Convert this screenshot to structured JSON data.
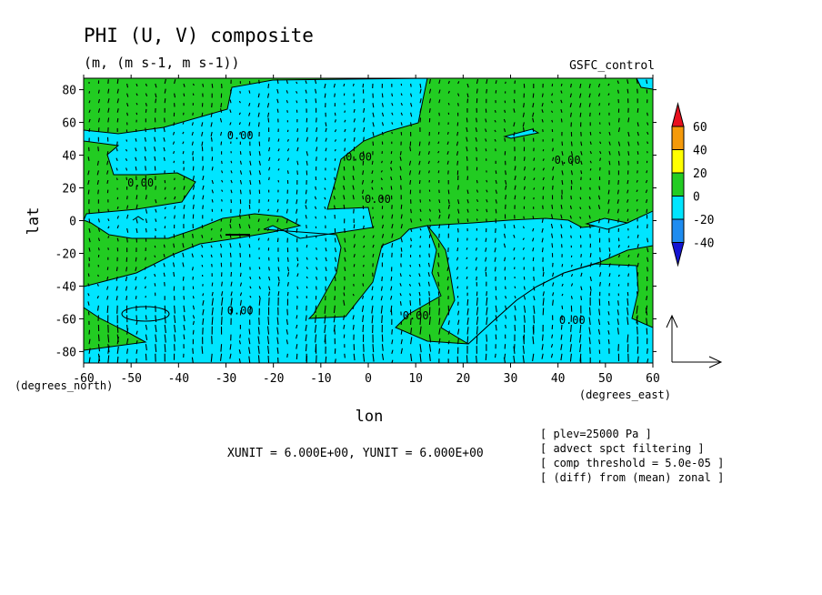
{
  "chart_data": {
    "type": "contour",
    "title": "PHI (U, V) composite",
    "subtitle": "(m, (m s-1, m s-1))",
    "experiment": "GSFC_control",
    "xlabel": "lon",
    "ylabel": "lat",
    "x_unit_label": "(degrees_east)",
    "y_unit_label": "(degrees_north)",
    "xlim": [
      -60,
      60
    ],
    "ylim": [
      -87,
      87
    ],
    "x_ticks": [
      -60,
      -50,
      -40,
      -30,
      -20,
      -10,
      0,
      10,
      20,
      30,
      40,
      50,
      60
    ],
    "y_ticks": [
      -80,
      -60,
      -40,
      -20,
      0,
      20,
      40,
      60,
      80
    ],
    "contour_labels": [
      {
        "text": "0.00",
        "lon": -27,
        "lat": 52
      },
      {
        "text": "0.00",
        "lon": -48,
        "lat": 23
      },
      {
        "text": "0.00",
        "lon": -2,
        "lat": 39
      },
      {
        "text": "0.00",
        "lon": 2,
        "lat": 13
      },
      {
        "text": "0.00",
        "lon": 42,
        "lat": 37
      },
      {
        "text": "0.00",
        "lon": -27,
        "lat": -55
      },
      {
        "text": "0.00",
        "lon": 10,
        "lat": -58
      },
      {
        "text": "0.00",
        "lon": 43,
        "lat": -61
      }
    ],
    "colorbar": {
      "ticks": [
        60,
        40,
        20,
        0,
        -20,
        -40
      ],
      "colors": [
        "#e8101e",
        "#f59a0a",
        "#ffff00",
        "#22cc22",
        "#00e5ff",
        "#1e8cf0",
        "#1414d2"
      ]
    },
    "field_colors": {
      "positive": "#22cc22",
      "negative": "#00e5ff"
    },
    "vector_legend": {
      "xunit": "6.000E+00",
      "yunit": "6.000E+00",
      "text": "XUNIT = 6.000E+00, YUNIT = 6.000E+00"
    },
    "annotations": [
      "[ plev=25000 Pa ]",
      "[ advect spct filtering ]",
      "[ comp threshold = 5.0e-05 ]",
      "[ (diff) from (mean) zonal ]"
    ]
  }
}
